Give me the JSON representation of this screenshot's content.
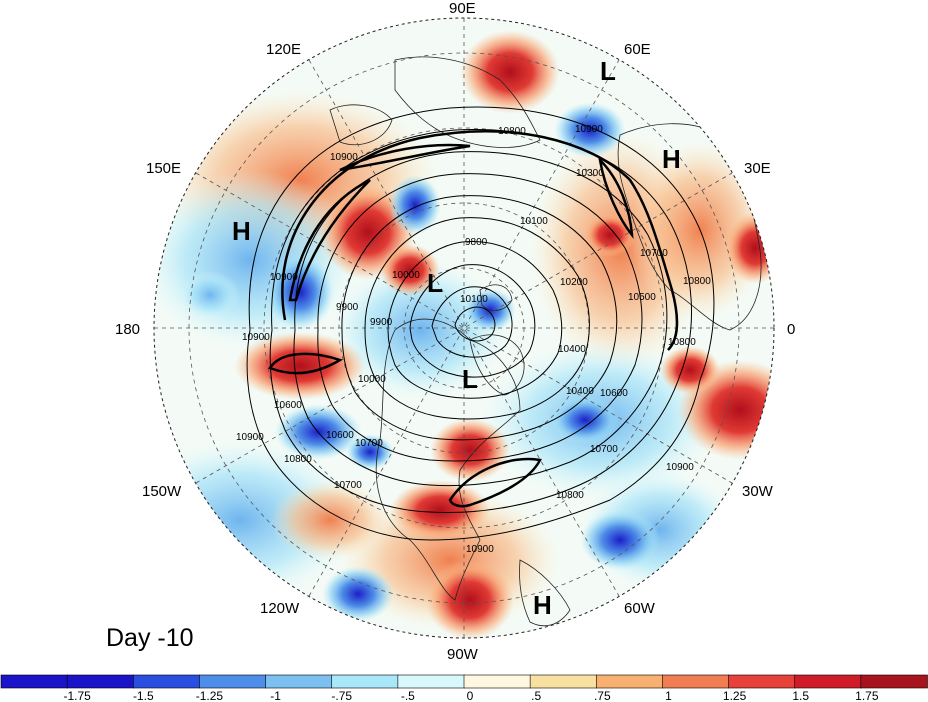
{
  "map": {
    "projection": "north-polar-stereographic",
    "day_label": "Day -10",
    "longitude_labels": {
      "lon_90e": "90E",
      "lon_120e": "120E",
      "lon_60e": "60E",
      "lon_150e": "150E",
      "lon_30e": "30E",
      "lon_180": "180",
      "lon_0": "0",
      "lon_150w": "150W",
      "lon_30w": "30W",
      "lon_120w": "120W",
      "lon_60w": "60W",
      "lon_90w": "90W"
    },
    "pressure_centers": {
      "l_eurasia": "L",
      "h_europe": "H",
      "h_pacific": "H",
      "l_arctic": "L",
      "l_canada": "L",
      "h_atlantic": "H"
    },
    "contour_labels": {
      "c1": "10900",
      "c2": "10800",
      "c3": "10700",
      "c4": "10300",
      "c5": "10100",
      "c6": "9800",
      "c7": "9900",
      "c8": "10000",
      "c9": "10900",
      "c10": "10900",
      "c11": "10900",
      "c12": "10800",
      "c13": "10700",
      "c14": "10400",
      "c15": "10600",
      "c16": "10500",
      "c17": "10400",
      "c18": "10600",
      "c19": "10700",
      "c20": "10800",
      "c21": "10900",
      "c22": "10800",
      "c23": "10700",
      "c24": "10600",
      "c25": "9900",
      "c26": "10100",
      "c27": "10200",
      "c28": "10900",
      "c29": "10000",
      "c30": "10800",
      "c31": "10900"
    },
    "colors": {
      "strong_neg": "#1a13c8",
      "neg": "#4f8ee8",
      "weak_neg": "#a8e8f8",
      "neutral": "#fff7e0",
      "weak_pos": "#f8b070",
      "pos": "#e8403a",
      "strong_pos": "#a8141e"
    }
  },
  "colorbar": {
    "ticks": [
      "-1.75",
      "-1.5",
      "-1.25",
      "-1",
      "-.75",
      "-.5",
      "0",
      ".5",
      ".75",
      "1",
      "1.25",
      "1.5",
      "1.75"
    ],
    "colors": [
      "#1a13c8",
      "#2a4fe0",
      "#4f8ee8",
      "#7cc0f2",
      "#a8e8f8",
      "#d8f8fc",
      "#fff7e0",
      "#f8e0a0",
      "#f8b070",
      "#f07e52",
      "#e8403a",
      "#d01c28",
      "#a8141e"
    ]
  }
}
